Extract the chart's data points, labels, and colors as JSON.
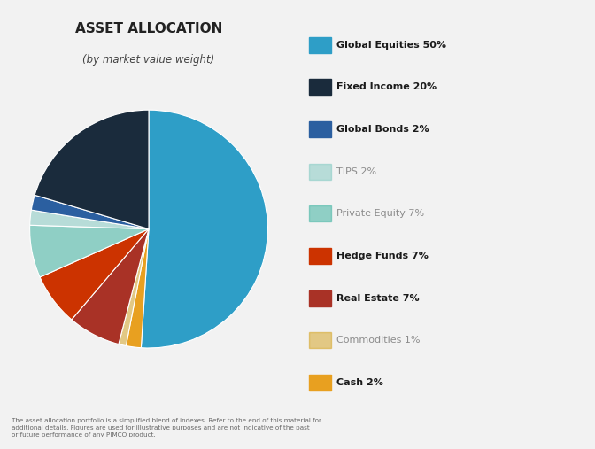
{
  "title": "ASSET ALLOCATION",
  "subtitle": "(by market value weight)",
  "slices": [
    {
      "label": "Global Equities 50%",
      "value": 50,
      "color": "#2E9EC7",
      "alpha": 1.0
    },
    {
      "label": "Cash 2%",
      "value": 2,
      "color": "#E8A020",
      "alpha": 1.0
    },
    {
      "label": "Commodities 1%",
      "value": 1,
      "color": "#D4A017",
      "alpha": 0.5
    },
    {
      "label": "Real Estate 7%",
      "value": 7,
      "color": "#A93226",
      "alpha": 1.0
    },
    {
      "label": "Hedge Funds 7%",
      "value": 7,
      "color": "#CC3300",
      "alpha": 1.0
    },
    {
      "label": "Private Equity 7%",
      "value": 7,
      "color": "#4DB8A8",
      "alpha": 0.6
    },
    {
      "label": "TIPS 2%",
      "value": 2,
      "color": "#7EC8C0",
      "alpha": 0.5
    },
    {
      "label": "Global Bonds 2%",
      "value": 2,
      "color": "#2B5FA0",
      "alpha": 1.0
    },
    {
      "label": "Fixed Income 20%",
      "value": 20,
      "color": "#1A2B3C",
      "alpha": 1.0
    }
  ],
  "legend_order": [
    0,
    8,
    7,
    6,
    5,
    4,
    3,
    2,
    1
  ],
  "footnote": "The asset allocation portfolio is a simplified blend of indexes. Refer to the end of this material for\nadditional details. Figures are used for illustrative purposes and are not indicative of the past\nor future performance of any PIMCO product.",
  "bg_color": "#f2f2f2",
  "faded_legend_indices": [
    3,
    4,
    7
  ]
}
